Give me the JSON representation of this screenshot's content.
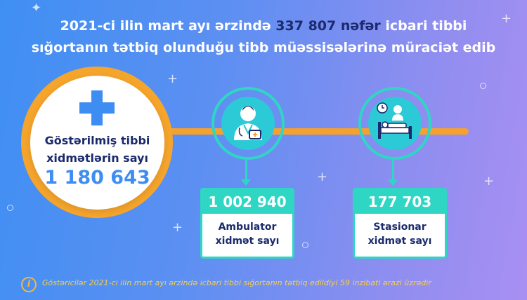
{
  "header": {
    "line1_before": "2021-ci ilin mart ayı ərzində ",
    "line1_bold": "337 807 nəfər",
    "line1_after": " icbari tibbi",
    "line2": "sığortanın tətbiq olunduğu tibb müəssisələrinə müraciət edib"
  },
  "main_stat": {
    "label_line1": "Göstərilmiş tibbi",
    "label_line2": "xidmətlərin sayı",
    "value": "1 180 643",
    "icon": "plus-icon"
  },
  "ambulator": {
    "value": "1 002 940",
    "label_line1": "Ambulator",
    "label_line2": "xidmət sayı",
    "icon": "doctor-icon"
  },
  "stasionar": {
    "value": "177 703",
    "label_line1": "Stasionar",
    "label_line2": "xidmət sayı",
    "icon": "hospital-bed-icon"
  },
  "footer": {
    "icon_char": "i",
    "text": "Göstəricilər 2021-ci ilin mart ayı ərzində icbari tibbi sığortanın tətbiq edildiyi 59 inzibati ərazi üzrədir"
  },
  "colors": {
    "accent_orange": "#f6a52c",
    "accent_teal": "#2fd6c4",
    "accent_blue": "#3e8df3",
    "dark_navy": "#1a2a6c"
  }
}
